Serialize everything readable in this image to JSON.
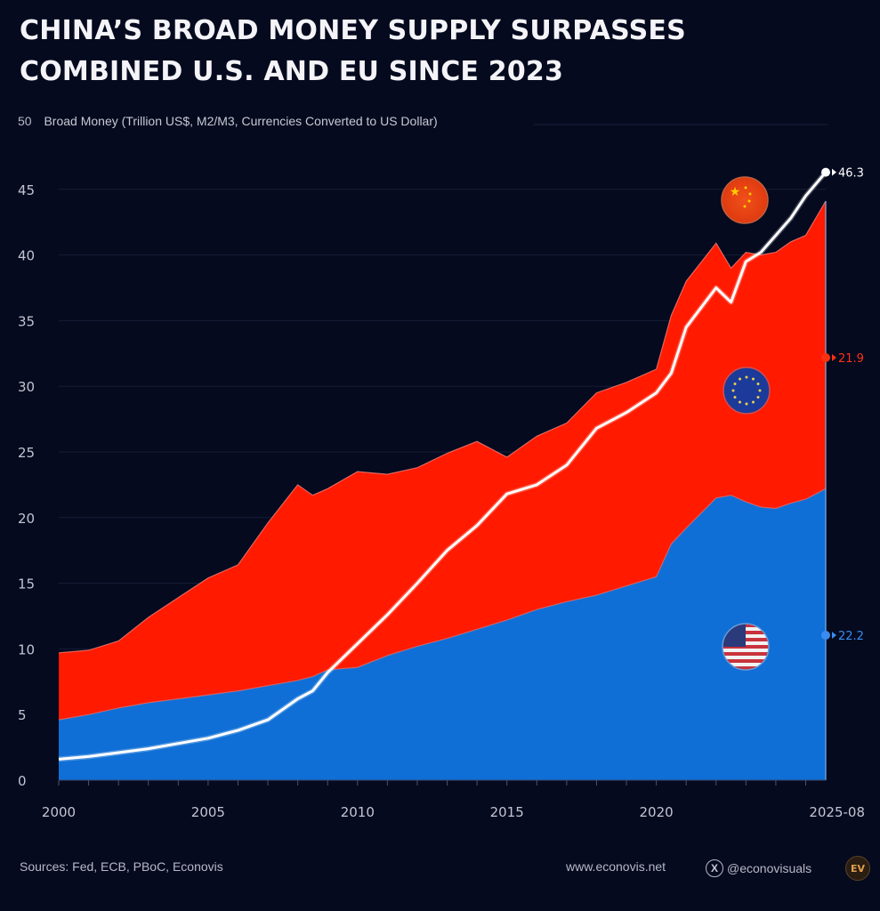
{
  "title_lines": [
    "CHINA’S BROAD MONEY SUPPLY SURPASSES",
    "COMBINED U.S. AND EU SINCE 2023"
  ],
  "footer": {
    "sources": "Sources: Fed, ECB, PBoC, Econovis",
    "website": "www.econovis.net",
    "x_handle": "@econovisuals",
    "x_icon": "x-logo-icon",
    "logo_text": "EV"
  },
  "chart_data": {
    "type": "area",
    "stacked": true,
    "title": "China’s Broad Money Supply Surpasses Combined U.S. and EU Since 2023",
    "ylabel": "Broad Money (Trillion US$, M2/M3, Currencies Converted to US Dollar)",
    "xlabel": "",
    "ylim": [
      0,
      50
    ],
    "yticks": [
      0,
      5,
      10,
      15,
      20,
      25,
      30,
      35,
      40,
      45,
      50
    ],
    "xlim": [
      2000,
      2025.67
    ],
    "xticks": [
      {
        "value": 2000,
        "label": "2000"
      },
      {
        "value": 2005,
        "label": "2005"
      },
      {
        "value": 2010,
        "label": "2010"
      },
      {
        "value": 2015,
        "label": "2015"
      },
      {
        "value": 2020,
        "label": "2020"
      },
      {
        "value": 2025.67,
        "label": "2025-08"
      }
    ],
    "grid": true,
    "legend": "flag icons inside chart (China top-right, EU middle-right, US lower-right)",
    "x": [
      2000,
      2001,
      2002,
      2003,
      2004,
      2005,
      2006,
      2007,
      2008,
      2008.5,
      2009,
      2010,
      2011,
      2012,
      2013,
      2014,
      2015,
      2016,
      2017,
      2018,
      2019,
      2020,
      2020.5,
      2021,
      2022,
      2022.5,
      2023,
      2023.5,
      2024,
      2024.5,
      2025,
      2025.67
    ],
    "series": [
      {
        "name": "United States",
        "color": "#0f6fd6",
        "stack": "base",
        "values": [
          4.6,
          5.0,
          5.5,
          5.9,
          6.2,
          6.5,
          6.8,
          7.2,
          7.6,
          7.9,
          8.4,
          8.6,
          9.5,
          10.2,
          10.8,
          11.5,
          12.2,
          13.0,
          13.6,
          14.1,
          14.8,
          15.5,
          18.0,
          19.2,
          21.5,
          21.7,
          21.2,
          20.8,
          20.7,
          21.1,
          21.4,
          22.2
        ]
      },
      {
        "name": "European Union",
        "color": "#ff1a00",
        "stack": "on top of United States",
        "values": [
          5.1,
          4.9,
          5.1,
          6.5,
          7.7,
          8.9,
          9.6,
          12.4,
          14.9,
          13.8,
          13.8,
          14.9,
          13.8,
          13.6,
          14.1,
          14.3,
          12.4,
          13.2,
          13.6,
          15.4,
          15.5,
          15.8,
          17.4,
          18.8,
          19.4,
          17.3,
          19.0,
          19.2,
          19.5,
          19.9,
          20.1,
          21.9
        ]
      },
      {
        "name": "China",
        "color": "#ffffff",
        "type": "line",
        "values": [
          1.6,
          1.8,
          2.1,
          2.4,
          2.8,
          3.2,
          3.8,
          4.6,
          6.2,
          6.8,
          8.2,
          10.4,
          12.6,
          15.0,
          17.5,
          19.4,
          21.8,
          22.5,
          24.0,
          26.8,
          28.0,
          29.5,
          31.0,
          34.5,
          37.5,
          36.4,
          39.5,
          40.2,
          41.5,
          42.8,
          44.5,
          46.3
        ]
      }
    ],
    "end_labels": [
      {
        "series": "China",
        "value": "46.3",
        "color": "#ffffff"
      },
      {
        "series": "European Union",
        "value": "21.9",
        "color": "#ff3010"
      },
      {
        "series": "United States",
        "value": "22.2",
        "color": "#3a8cf0"
      }
    ],
    "flags": [
      {
        "series": "China",
        "icon": "china-flag-icon",
        "near_value": 44.0,
        "near_x": 2023
      },
      {
        "series": "European Union",
        "icon": "eu-flag-icon",
        "near_value": 29.5,
        "near_x": 2023
      },
      {
        "series": "United States",
        "icon": "us-flag-icon",
        "near_value": 10.0,
        "near_x": 2023
      }
    ]
  }
}
